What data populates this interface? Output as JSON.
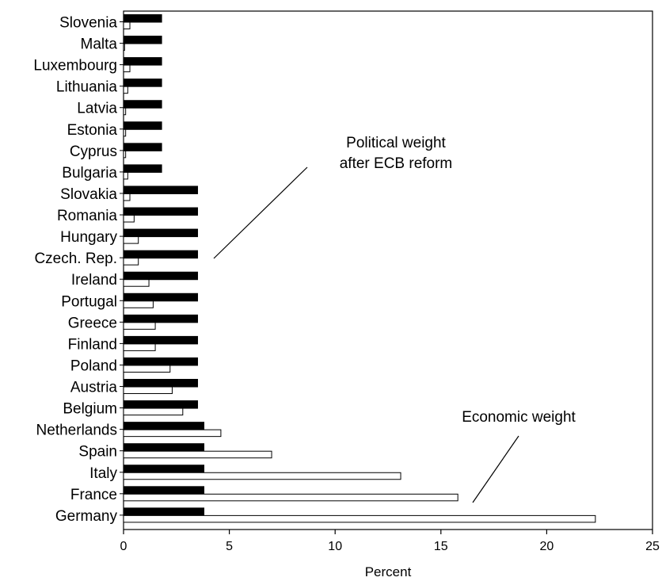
{
  "chart_data": {
    "type": "bar",
    "orientation": "horizontal",
    "title": "",
    "xlabel": "Percent",
    "ylabel": "",
    "xlim": [
      0,
      25
    ],
    "x_ticks": [
      0,
      5,
      10,
      15,
      20,
      25
    ],
    "x_tick_labels": [
      "0",
      "5",
      "10",
      "15",
      "20",
      "25"
    ],
    "grid": false,
    "legend": "none",
    "categories": [
      "Slovenia",
      "Malta",
      "Luxembourg",
      "Lithuania",
      "Latvia",
      "Estonia",
      "Cyprus",
      "Bulgaria",
      "Slovakia",
      "Romania",
      "Hungary",
      "Czech. Rep.",
      "Ireland",
      "Portugal",
      "Greece",
      "Finland",
      "Poland",
      "Austria",
      "Belgium",
      "Netherlands",
      "Spain",
      "Italy",
      "France",
      "Germany"
    ],
    "series": [
      {
        "name": "Political weight after ECB reform",
        "color": "#000000",
        "values": [
          1.8,
          1.8,
          1.8,
          1.8,
          1.8,
          1.8,
          1.8,
          1.8,
          3.5,
          3.5,
          3.5,
          3.5,
          3.5,
          3.5,
          3.5,
          3.5,
          3.5,
          3.5,
          3.5,
          3.8,
          3.8,
          3.8,
          3.8,
          3.8
        ]
      },
      {
        "name": "Economic weight",
        "color": "#ffffff",
        "values": [
          0.3,
          0.05,
          0.3,
          0.2,
          0.1,
          0.1,
          0.1,
          0.2,
          0.3,
          0.5,
          0.7,
          0.7,
          1.2,
          1.4,
          1.5,
          1.5,
          2.2,
          2.3,
          2.8,
          4.6,
          7.0,
          13.1,
          15.8,
          22.3
        ]
      }
    ],
    "annotations": [
      {
        "text_lines": [
          "Political weight",
          "after ECB reform"
        ],
        "points_to": "Political weight after ECB reform"
      },
      {
        "text_lines": [
          "Economic weight"
        ],
        "points_to": "Economic weight"
      }
    ]
  }
}
